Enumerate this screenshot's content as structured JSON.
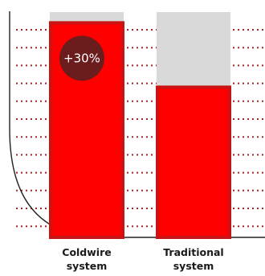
{
  "chart_data": {
    "type": "bar",
    "categories": [
      "Coldwire system",
      "Traditional system"
    ],
    "category_labels": [
      [
        "Coldwire",
        "system"
      ],
      [
        "Traditional",
        "system"
      ]
    ],
    "values": [
      100,
      70
    ],
    "ylim": [
      0,
      105
    ],
    "grid": true,
    "annotation": {
      "category": "Coldwire system",
      "text": "+30%"
    },
    "colors": {
      "bar": "#ff0000",
      "bar_stroke": "#c81414",
      "capacity": "#d9d9d9",
      "badge": "#6b1c1c",
      "grid": "#a02828",
      "curve": "#222222"
    }
  }
}
